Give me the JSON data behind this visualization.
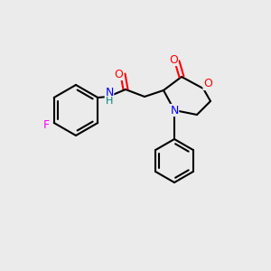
{
  "bg_color": "#ebebeb",
  "bond_color": "#000000",
  "bond_lw": 1.5,
  "fig_width": 3.0,
  "fig_height": 3.0,
  "dpi": 100,
  "atom_colors": {
    "O": "#ff0000",
    "N": "#0000ff",
    "F": "#ff00ff",
    "NH": "#008080",
    "C": "#000000"
  },
  "font_size": 9
}
